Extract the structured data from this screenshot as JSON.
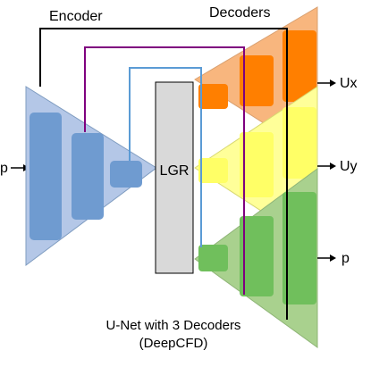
{
  "title_encoder": "Encoder",
  "title_decoders": "Decoders",
  "input_label": "p",
  "bottleneck_label": "LGR",
  "outputs": [
    "Ux",
    "Uy",
    "p"
  ],
  "caption": {
    "line1": "U-Net with 3 Decoders",
    "line2": "(DeepCFD)"
  },
  "colors": {
    "encoder_fill": "#b4c7e7",
    "encoder_block": "#6f9bd0",
    "bottleneck_fill": "#d9d9d9",
    "decoder_ux_fill": "#f8b67e",
    "decoder_ux_block": "#ff7f00",
    "decoder_uy_fill": "#ffff99",
    "decoder_uy_block": "#ffff66",
    "decoder_p_fill": "#a9d18e",
    "decoder_p_block": "#70bf5c",
    "skip_outer": "#000000",
    "skip_middle": "#7f007f",
    "skip_inner": "#5b9bd5"
  }
}
